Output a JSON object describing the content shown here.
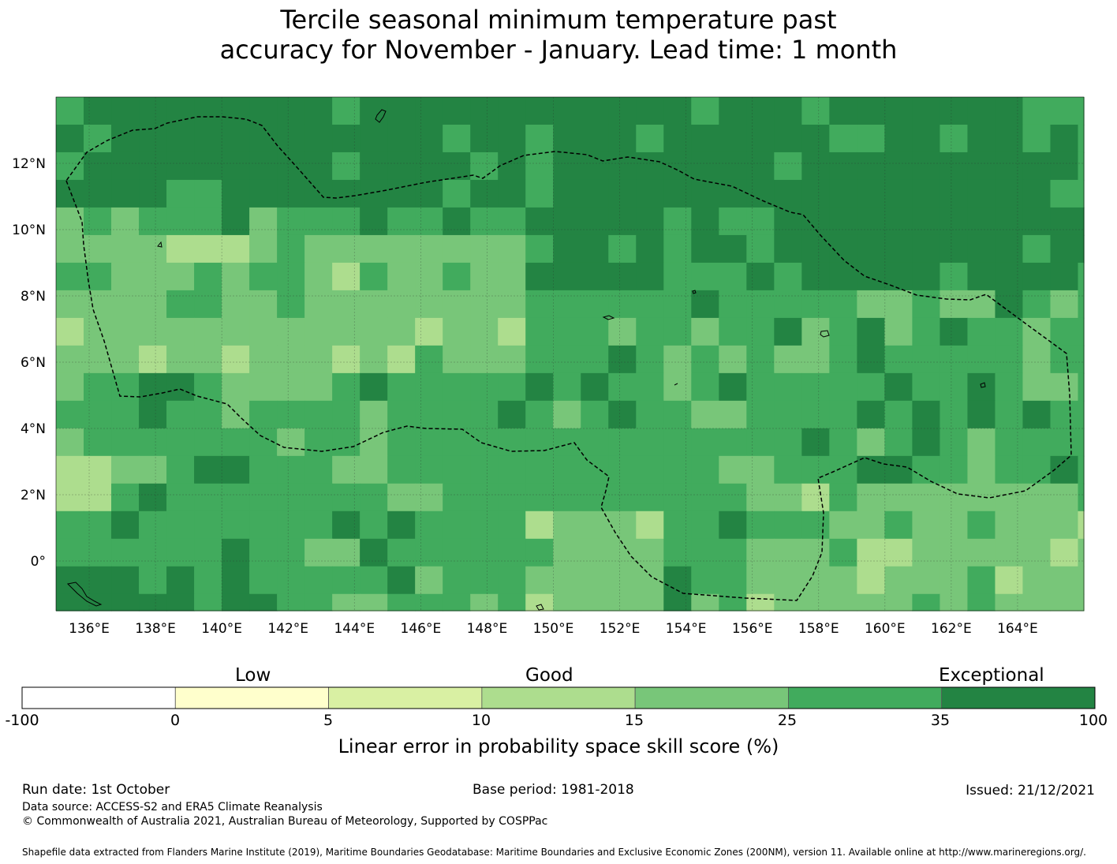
{
  "title": {
    "line1": "Tercile seasonal minimum temperature past",
    "line2": "accuracy for November - January. Lead time: 1 month"
  },
  "map": {
    "lon_labels": [
      "136°E",
      "138°E",
      "140°E",
      "142°E",
      "144°E",
      "146°E",
      "148°E",
      "150°E",
      "152°E",
      "154°E",
      "156°E",
      "158°E",
      "160°E",
      "162°E",
      "164°E"
    ],
    "lat_labels": [
      "12°N",
      "10°N",
      "8°N",
      "6°N",
      "4°N",
      "2°N",
      "0°"
    ],
    "lon_range": [
      135.0,
      166.0
    ],
    "lat_range": [
      -1.5,
      14.0
    ],
    "grid": true,
    "category_colors": [
      "#ffffcc",
      "#d9f0a3",
      "#addd8e",
      "#78c679",
      "#41ab5d",
      "#238443"
    ],
    "eez_boundary_style": "dashed black line"
  },
  "colorbar": {
    "ticks": [
      "-100",
      "0",
      "5",
      "10",
      "15",
      "25",
      "35",
      "100"
    ],
    "segment_colors": [
      "#ffffff",
      "#ffffcc",
      "#d9f0a3",
      "#addd8e",
      "#78c679",
      "#41ab5d",
      "#238443"
    ],
    "categories": [
      "Low",
      "Good",
      "Exceptional"
    ],
    "label": "Linear error in probability space skill score (%)"
  },
  "footer": {
    "run_date": "Run date: 1st October",
    "base_period": "Base period: 1981-2018",
    "issued": "Issued: 21/12/2021",
    "data_source": "Data source: ACCESS-S2 and ERA5 Climate Reanalysis",
    "copyright": "© Commonwealth of Australia 2021, Australian Bureau of Meteorology, Supported by COSPPac",
    "shapefile": "Shapefile data extracted from Flanders Marine Institute (2019), Maritime Boundaries Geodatabase: Maritime Boundaries and Exclusive Economic Zones (200NM), version 11. Available online at http://www.marineregions.org/."
  }
}
